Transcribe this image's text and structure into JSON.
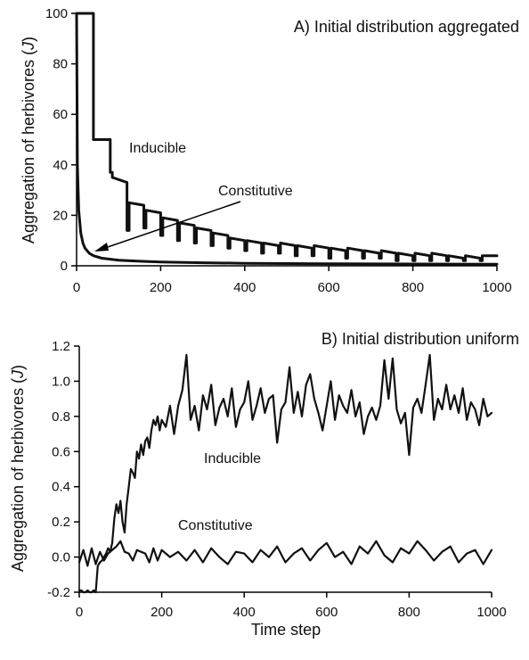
{
  "chart_data": [
    {
      "type": "line",
      "title": "A) Initial distribution aggregated",
      "xlabel": "",
      "ylabel": "Aggregation of herbivores (",
      "ylabel_italic": "J",
      "ylabel_close": ")",
      "xlim": [
        0,
        1000
      ],
      "ylim": [
        0,
        100
      ],
      "xticks": [
        0,
        200,
        400,
        600,
        800,
        1000
      ],
      "yticks": [
        0,
        20,
        40,
        60,
        80,
        100
      ],
      "grid": false,
      "legend": "none",
      "annotations": [
        {
          "text": "Inducible",
          "x": 145,
          "y": 62
        },
        {
          "text": "Constitutive",
          "x": 330,
          "y": 38
        }
      ],
      "series": [
        {
          "name": "Inducible",
          "x": [
            0,
            0,
            40,
            40,
            80,
            80,
            85,
            85,
            120,
            120,
            125,
            125,
            160,
            160,
            165,
            165,
            200,
            200,
            205,
            205,
            240,
            240,
            245,
            245,
            280,
            280,
            285,
            285,
            320,
            320,
            325,
            325,
            360,
            360,
            365,
            365,
            400,
            400,
            405,
            405,
            440,
            440,
            445,
            445,
            480,
            480,
            485,
            485,
            520,
            520,
            525,
            525,
            560,
            560,
            565,
            565,
            600,
            600,
            605,
            605,
            640,
            640,
            645,
            645,
            680,
            680,
            685,
            685,
            720,
            720,
            725,
            725,
            760,
            760,
            765,
            765,
            800,
            800,
            805,
            805,
            840,
            840,
            845,
            845,
            880,
            880,
            885,
            885,
            920,
            920,
            925,
            925,
            960,
            960,
            965,
            965,
            1000
          ],
          "values": [
            100,
            100,
            100,
            50,
            50,
            37,
            37,
            35,
            33,
            14,
            14,
            25,
            24,
            15,
            15,
            22,
            21,
            12,
            12,
            19,
            18,
            10,
            10,
            17,
            16,
            9,
            9,
            15,
            14,
            8,
            8,
            13,
            12,
            7,
            7,
            11,
            10,
            6,
            6,
            10,
            9,
            5,
            5,
            9,
            8,
            5,
            5,
            9,
            8,
            4,
            4,
            8,
            7,
            4,
            4,
            8,
            7,
            3,
            3,
            7,
            6,
            3,
            3,
            7,
            6,
            3,
            3,
            6,
            5,
            3,
            3,
            6,
            5,
            2,
            2,
            5,
            4,
            2,
            2,
            5,
            4,
            2,
            2,
            5,
            4,
            2,
            2,
            4,
            3,
            2,
            2,
            4,
            3,
            2,
            2,
            4,
            4
          ]
        },
        {
          "name": "Constitutive",
          "x": [
            0,
            2,
            5,
            10,
            15,
            20,
            30,
            40,
            60,
            80,
            100,
            150,
            200,
            300,
            400,
            500,
            600,
            800,
            1000
          ],
          "values": [
            100,
            40,
            22,
            13,
            9,
            7,
            5,
            4,
            3,
            2.6,
            2.2,
            1.8,
            1.5,
            1.2,
            1.0,
            0.9,
            0.8,
            0.7,
            0.6
          ]
        }
      ]
    },
    {
      "type": "line",
      "title": "B) Initial distribution uniform",
      "xlabel": "Time step",
      "ylabel": "Aggregation of herbivores (",
      "ylabel_italic": "J",
      "ylabel_close": ")",
      "xlim": [
        0,
        1000
      ],
      "ylim": [
        -0.2,
        1.2
      ],
      "xticks": [
        0,
        200,
        400,
        600,
        800,
        1000
      ],
      "yticks": [
        -0.2,
        0.0,
        0.2,
        0.4,
        0.6,
        0.8,
        1.0,
        1.2
      ],
      "ytick_labels": [
        "-0.2",
        "0.0",
        "0.2",
        "0.4",
        "0.6",
        "0.8",
        "1.0",
        "1.2"
      ],
      "grid": false,
      "legend": "none",
      "annotations": [
        {
          "text": "Inducible",
          "x": 320,
          "y": 0.56
        },
        {
          "text": "Constitutive",
          "x": 320,
          "y": 0.14
        }
      ],
      "series": [
        {
          "name": "Inducible",
          "x": [
            0,
            5,
            10,
            15,
            20,
            25,
            30,
            35,
            40,
            45,
            50,
            55,
            60,
            65,
            70,
            75,
            80,
            85,
            90,
            95,
            100,
            105,
            110,
            115,
            120,
            125,
            130,
            135,
            140,
            145,
            150,
            155,
            160,
            165,
            170,
            175,
            180,
            185,
            190,
            195,
            200,
            210,
            220,
            230,
            240,
            250,
            260,
            270,
            280,
            290,
            300,
            310,
            320,
            330,
            340,
            350,
            360,
            370,
            380,
            390,
            400,
            410,
            420,
            430,
            440,
            450,
            460,
            470,
            480,
            490,
            500,
            510,
            520,
            530,
            540,
            550,
            560,
            570,
            580,
            590,
            600,
            610,
            620,
            630,
            640,
            650,
            660,
            670,
            680,
            690,
            700,
            710,
            720,
            730,
            740,
            750,
            760,
            770,
            780,
            790,
            800,
            810,
            820,
            830,
            840,
            850,
            860,
            870,
            880,
            890,
            900,
            910,
            920,
            930,
            940,
            950,
            960,
            970,
            980,
            990,
            1000
          ],
          "values": [
            -0.19,
            -0.19,
            -0.2,
            -0.2,
            -0.19,
            -0.2,
            -0.2,
            -0.19,
            -0.2,
            -0.05,
            -0.03,
            -0.02,
            0.0,
            0.02,
            0.05,
            0.03,
            0.08,
            0.22,
            0.3,
            0.25,
            0.32,
            0.2,
            0.14,
            0.3,
            0.4,
            0.5,
            0.48,
            0.45,
            0.6,
            0.56,
            0.64,
            0.58,
            0.66,
            0.68,
            0.62,
            0.72,
            0.78,
            0.75,
            0.8,
            0.72,
            0.78,
            0.74,
            0.86,
            0.7,
            0.86,
            0.95,
            1.15,
            0.78,
            0.86,
            0.72,
            0.92,
            0.84,
            0.98,
            0.75,
            0.85,
            0.9,
            0.8,
            0.96,
            0.74,
            0.84,
            0.88,
            1.0,
            0.78,
            0.86,
            0.96,
            0.82,
            0.9,
            0.92,
            0.65,
            0.84,
            0.88,
            1.08,
            0.82,
            0.94,
            0.8,
            0.98,
            1.04,
            0.9,
            0.82,
            0.72,
            0.86,
            1.0,
            0.78,
            0.92,
            0.86,
            0.82,
            0.95,
            0.8,
            0.88,
            0.7,
            0.8,
            0.85,
            0.78,
            0.86,
            1.12,
            0.9,
            1.13,
            0.84,
            0.76,
            0.82,
            0.58,
            0.85,
            0.9,
            0.82,
            0.98,
            1.15,
            0.78,
            0.9,
            0.84,
            0.98,
            0.84,
            0.92,
            0.82,
            0.96,
            0.78,
            0.88,
            0.84,
            0.75,
            0.9,
            0.8,
            0.82
          ]
        },
        {
          "name": "Constitutive",
          "x": [
            0,
            10,
            20,
            30,
            40,
            50,
            60,
            70,
            80,
            90,
            100,
            110,
            120,
            130,
            140,
            150,
            160,
            170,
            180,
            190,
            200,
            220,
            240,
            260,
            280,
            300,
            320,
            340,
            360,
            380,
            400,
            420,
            440,
            460,
            480,
            500,
            520,
            540,
            560,
            580,
            600,
            620,
            640,
            660,
            680,
            700,
            720,
            740,
            760,
            780,
            800,
            820,
            840,
            860,
            880,
            900,
            920,
            940,
            960,
            980,
            1000
          ],
          "values": [
            -0.03,
            0.04,
            -0.05,
            0.05,
            -0.04,
            0.03,
            -0.02,
            0.02,
            0.04,
            0.06,
            0.09,
            0.03,
            0.02,
            -0.02,
            0.04,
            0.03,
            0.02,
            -0.03,
            0.05,
            -0.02,
            0.04,
            0.0,
            0.03,
            -0.02,
            0.04,
            -0.03,
            0.05,
            0.0,
            -0.04,
            0.03,
            0.02,
            -0.03,
            0.04,
            0.0,
            0.06,
            -0.03,
            0.02,
            0.05,
            -0.02,
            0.04,
            0.08,
            0.0,
            0.03,
            -0.04,
            0.06,
            0.02,
            0.09,
            0.01,
            -0.03,
            0.05,
            0.02,
            0.09,
            0.04,
            -0.02,
            0.03,
            0.06,
            -0.03,
            0.02,
            0.04,
            -0.04,
            0.04
          ]
        }
      ]
    }
  ]
}
